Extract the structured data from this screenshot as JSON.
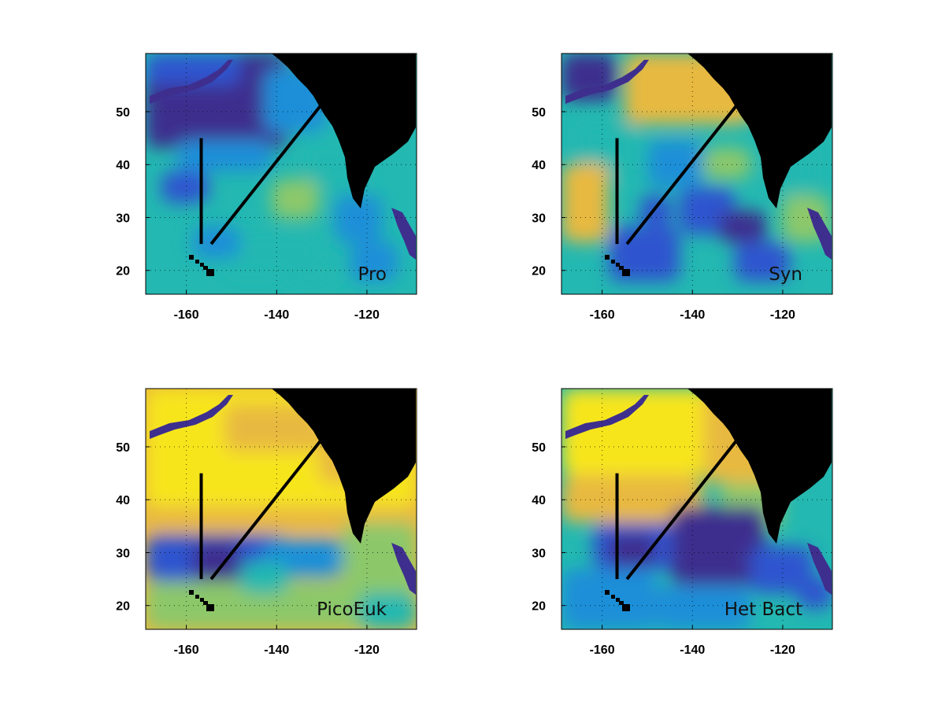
{
  "figure": {
    "panels": [
      {
        "label": "Pro",
        "map": "Pro",
        "distribution": "Pro"
      },
      {
        "label": "Syn",
        "map": "Syn",
        "distribution": "Syn"
      },
      {
        "label": "PicoEuk",
        "map": "PicoEuk",
        "distribution": "PicoEuk"
      },
      {
        "label": "Het Bact",
        "map": "HetBact",
        "distribution": "Het Bact"
      }
    ],
    "x_ticks": [
      "-160",
      "-140",
      "-120"
    ],
    "y_ticks": [
      "20",
      "30",
      "40",
      "50"
    ],
    "x_tick_values": [
      -160,
      -140,
      -120
    ],
    "y_tick_values": [
      20,
      30,
      40,
      50
    ],
    "lon_range": [
      -169,
      -109
    ],
    "lat_range": [
      15.5,
      61
    ],
    "transects": [
      {
        "from": [
          -156.7,
          45
        ],
        "to": [
          -156.7,
          25
        ]
      },
      {
        "from": [
          -154.5,
          25
        ],
        "to": [
          -129,
          52.5
        ]
      }
    ],
    "colors": {
      "land": "#000000",
      "transect": "#000000",
      "colormap": [
        "#3e2f8e",
        "#2f54cf",
        "#1e8fd8",
        "#23b8b1",
        "#8cc86b",
        "#e8b93f",
        "#f7e51d"
      ]
    }
  }
}
